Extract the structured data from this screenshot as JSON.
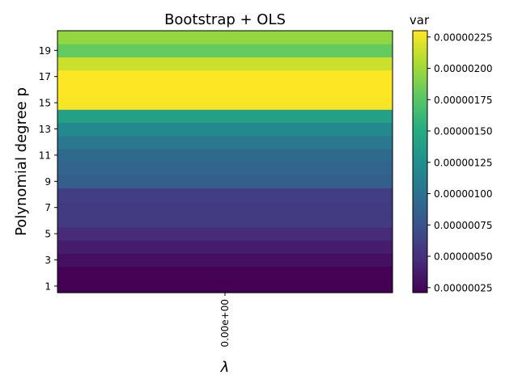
{
  "chart_data": {
    "type": "heatmap",
    "title": "Bootstrap + OLS",
    "xlabel": "λ",
    "ylabel": "Polynomial degree p",
    "x_categories": [
      "0.00e+00"
    ],
    "y_categories": [
      1,
      2,
      3,
      4,
      5,
      6,
      7,
      8,
      9,
      10,
      11,
      12,
      13,
      14,
      15,
      16,
      17,
      18,
      19,
      20
    ],
    "y_tick_labels": [
      "1",
      "3",
      "5",
      "7",
      "9",
      "11",
      "13",
      "15",
      "17",
      "19"
    ],
    "values": [
      2.1e-07,
      2.2e-07,
      3e-07,
      3.8e-07,
      4.6e-07,
      5.8e-07,
      5.8e-07,
      6e-07,
      8.5e-07,
      8.9e-07,
      9.4e-07,
      1.05e-06,
      1.2e-06,
      1.4e-06,
      2.28e-06,
      2.3e-06,
      2.3e-06,
      2.14e-06,
      1.8e-06,
      1.96e-06
    ],
    "colorbar": {
      "label": "var",
      "colormap": "viridis",
      "range": [
        2.1e-07,
        2.3e-06
      ],
      "tick_values": [
        2.5e-07,
        5e-07,
        7.5e-07,
        1e-06,
        1.25e-06,
        1.5e-06,
        1.75e-06,
        2e-06,
        2.25e-06
      ],
      "tick_labels": [
        "0.00000025",
        "0.00000050",
        "0.00000075",
        "0.00000100",
        "0.00000125",
        "0.00000150",
        "0.00000175",
        "0.00000200",
        "0.00000225"
      ]
    }
  }
}
